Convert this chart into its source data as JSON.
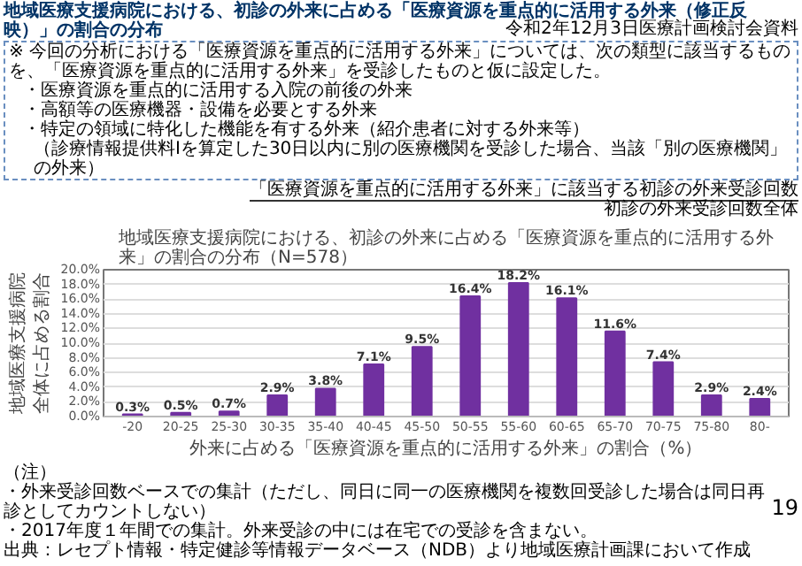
{
  "chart_data": {
    "type": "bar",
    "title": "地域医療支援病院における、初診の外来に占める「医療資源を重点的に活用する外来」の割合の分布（N=578）",
    "xlabel": "外来に占める「医療資源を重点的に活用する外来」の割合（%）",
    "ylabel": "地域医療支援病院全体に占める割合",
    "categories": [
      "-20",
      "20-25",
      "25-30",
      "30-35",
      "35-40",
      "40-45",
      "45-50",
      "50-55",
      "55-60",
      "60-65",
      "65-70",
      "70-75",
      "75-80",
      "80-"
    ],
    "values": [
      0.3,
      0.5,
      0.7,
      2.9,
      3.8,
      7.1,
      9.5,
      16.4,
      18.2,
      16.1,
      11.6,
      7.4,
      2.9,
      2.4
    ],
    "value_labels": [
      "0.3%",
      "0.5%",
      "0.7%",
      "2.9%",
      "3.8%",
      "7.1%",
      "9.5%",
      "16.4%",
      "18.2%",
      "16.1%",
      "11.6%",
      "7.4%",
      "2.9%",
      "2.4%"
    ],
    "color": "#7030a0",
    "ylim": [
      0,
      20
    ],
    "yticks": [
      {
        "value": 0,
        "label": "0.0%"
      },
      {
        "value": 2,
        "label": "2.0%"
      },
      {
        "value": 4,
        "label": "4.0%"
      },
      {
        "value": 6,
        "label": "6.0%"
      },
      {
        "value": 8,
        "label": "8.0%"
      },
      {
        "value": 10,
        "label": "10.0%"
      },
      {
        "value": 12,
        "label": "12.0%"
      },
      {
        "value": 14,
        "label": "14.0%"
      },
      {
        "value": 16,
        "label": "16.0%"
      },
      {
        "value": 18,
        "label": "18.0%"
      },
      {
        "value": 20,
        "label": "20.0%"
      }
    ],
    "grid": "y",
    "annotations": [
      "令和2年12月3日医療計画検討会資料",
      "地域医療支援病院における、初診の外来に占める「医療資源を重点的に活用する外来（修正反映）」の割合の分布",
      "※ 今回の分析における「医療資源を重点的に活用する外来」については、次の類型に該当するものを、「医療資源を重点的に活用する外来」を受診したものと仮に設定した。",
      "・医療資源を重点的に活用する入院の前後の外来",
      "・高額等の医療機器・設備を必要とする外来",
      "・特定の領域に特化した機能を有する外来（紹介患者に対する外来等）",
      "（診療情報提供料Ⅰを算定した30日以内に別の医療機関を受診した場合、当該「別の医療機関」の外来）",
      "「医療資源を重点的に活用する外来」に該当する初診の外来受診回数",
      "初診の外来受診回数全体",
      "（注）",
      "・外来受診回数ベースでの集計（ただし、同日に同一の医療機関を複数回受診した場合は同日再診としてカウントしない）",
      "・2017年度１年間での集計。外来受診の中には在宅での受診を含まない。",
      "出典：レセプト情報・特定健診等情報データベース（NDB）より地域医療計画課において作成",
      "19"
    ]
  }
}
